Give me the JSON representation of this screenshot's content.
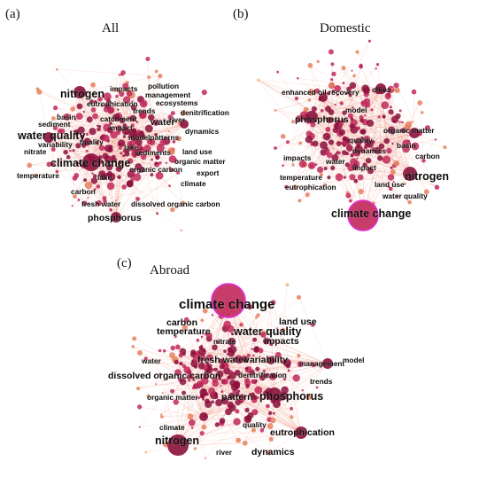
{
  "colors": {
    "node_dark": "#8c0f3c",
    "node_mid": "#c1285a",
    "node_light": "#e8805e",
    "node_pale": "#f4c190",
    "edge": "#f0a090",
    "hub_ring": "#e02bd9"
  },
  "panels": [
    {
      "id": "a",
      "label": "(a)",
      "title": "All",
      "keywords": [
        "pollution",
        "impacts",
        "management",
        "ecosystems",
        "nitrogen",
        "eutrophication",
        "trends",
        "denitrification",
        "basin",
        "catchment",
        "river",
        "sediment",
        "water",
        "impact",
        "dynamics",
        "water quality",
        "modelpatterns",
        "variability",
        "quality",
        "lake",
        "nitrate",
        "land use",
        "sediments",
        "organic matter",
        "climate change",
        "organic carbon",
        "temperature",
        "export",
        "lake",
        "climate",
        "carbon",
        "fresh water",
        "dissolved organic carbon",
        "phosphorus"
      ]
    },
    {
      "id": "b",
      "label": "(b)",
      "title": "Domestic",
      "keywords": [
        "enhanced oil recovery",
        "china",
        "model",
        "phosphorus",
        "organic matter",
        "quality",
        "basin",
        "dynamics",
        "carbon",
        "impacts",
        "water",
        "impact",
        "nitrogen",
        "temperature",
        "land use",
        "eutrophication",
        "water quality",
        "climate change"
      ]
    },
    {
      "id": "c",
      "label": "(c)",
      "title": "Abroad",
      "keywords": [
        "climate change",
        "land use",
        "carbon",
        "temperature",
        "water quality",
        "nitrate",
        "impacts",
        "water",
        "fresh water",
        "variability",
        "management",
        "model",
        "denitrification",
        "dissolved organic carbon",
        "trends",
        "organic matter",
        "pattern",
        "phosphorus",
        "climate",
        "quality",
        "eutrophication",
        "nitrogen",
        "river",
        "dynamics"
      ]
    }
  ]
}
